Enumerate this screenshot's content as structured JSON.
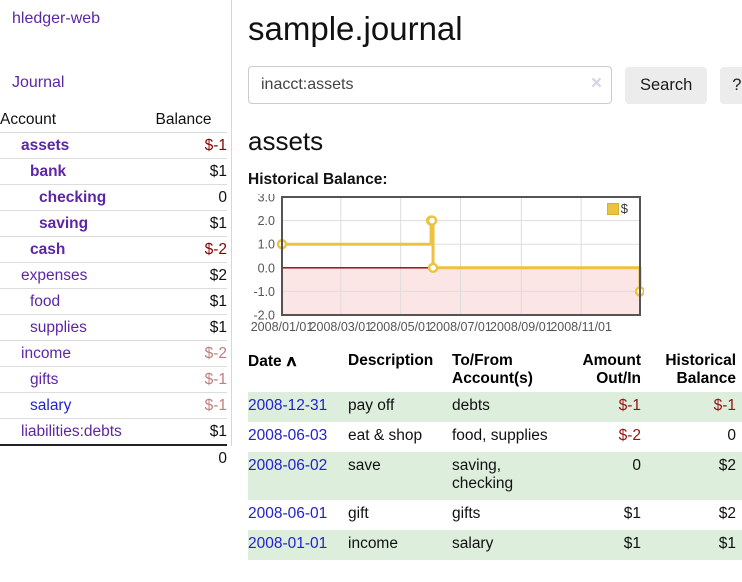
{
  "app": {
    "brand": "hledger-web",
    "nav": {
      "journal": "Journal"
    }
  },
  "sidebar": {
    "header": {
      "account": "Account",
      "balance": "Balance"
    },
    "accounts": [
      {
        "name": "assets",
        "level": 0,
        "bold": true,
        "balance": "$-1",
        "balance_style": "neg-strong"
      },
      {
        "name": "bank",
        "level": 1,
        "bold": true,
        "balance": "$1",
        "balance_style": "plain"
      },
      {
        "name": "checking",
        "level": 2,
        "bold": true,
        "balance": "0",
        "balance_style": "plain"
      },
      {
        "name": "saving",
        "level": 2,
        "bold": true,
        "balance": "$1",
        "balance_style": "plain"
      },
      {
        "name": "cash",
        "level": 1,
        "bold": true,
        "balance": "$-2",
        "balance_style": "neg-strong"
      },
      {
        "name": "expenses",
        "level": 0,
        "bold": false,
        "balance": "$2",
        "balance_style": "plain"
      },
      {
        "name": "food",
        "level": 1,
        "bold": false,
        "balance": "$1",
        "balance_style": "plain"
      },
      {
        "name": "supplies",
        "level": 1,
        "bold": false,
        "balance": "$1",
        "balance_style": "plain"
      },
      {
        "name": "income",
        "level": 0,
        "bold": false,
        "balance": "$-2",
        "balance_style": "neg-weak"
      },
      {
        "name": "gifts",
        "level": 1,
        "bold": false,
        "balance": "$-1",
        "balance_style": "neg-weak"
      },
      {
        "name": "salary",
        "level": 1,
        "bold": false,
        "balance": "$-1",
        "balance_style": "neg-weak",
        "link_color": "blue"
      },
      {
        "name": "liabilities:debts",
        "level": 0,
        "bold": false,
        "balance": "$1",
        "balance_style": "plain"
      }
    ],
    "total": "0"
  },
  "header": {
    "title": "sample.journal"
  },
  "search": {
    "value": "inacct:assets",
    "clear_icon": "×",
    "search_button": "Search",
    "help_button": "?"
  },
  "register": {
    "account_title": "assets",
    "chart_heading": "Historical Balance:",
    "table": {
      "headers": {
        "date": "Date",
        "sort_arrow": "∧",
        "description": "Description",
        "tofrom": "To/From Account(s)",
        "amount": "Amount Out/In",
        "balance": "Historical Balance"
      },
      "rows": [
        {
          "date": "2008-12-31",
          "description": "pay off",
          "accounts": "debts",
          "amount": "$-1",
          "balance": "$-1"
        },
        {
          "date": "2008-06-03",
          "description": "eat & shop",
          "accounts": "food, supplies",
          "amount": "$-2",
          "balance": "0"
        },
        {
          "date": "2008-06-02",
          "description": "save",
          "accounts": "saving, checking",
          "amount": "0",
          "balance": "$2"
        },
        {
          "date": "2008-06-01",
          "description": "gift",
          "accounts": "gifts",
          "amount": "$1",
          "balance": "$2"
        },
        {
          "date": "2008-01-01",
          "description": "income",
          "accounts": "salary",
          "amount": "$1",
          "balance": "$1"
        }
      ]
    }
  },
  "chart_data": {
    "type": "line",
    "title": "Historical Balance:",
    "step": true,
    "series": [
      {
        "name": "$",
        "color": "#edc240",
        "points": [
          [
            "2008-01-01",
            1
          ],
          [
            "2008-06-01",
            2
          ],
          [
            "2008-06-02",
            2
          ],
          [
            "2008-06-03",
            0
          ],
          [
            "2008-12-31",
            -1
          ]
        ]
      }
    ],
    "xlim": [
      "2008-01-01",
      "2008-12-31"
    ],
    "ylim": [
      -2,
      3
    ],
    "yticks": [
      3.0,
      2.0,
      1.0,
      0.0,
      -1.0,
      -2.0
    ],
    "xticks": [
      {
        "date": "2008-01-01",
        "label": "2008/01/01"
      },
      {
        "date": "2008-03-01",
        "label": "2008/03/01"
      },
      {
        "date": "2008-05-01",
        "label": "2008/05/01"
      },
      {
        "date": "2008-07-01",
        "label": "2008/07/01"
      },
      {
        "date": "2008-09-01",
        "label": "2008/09/01"
      },
      {
        "date": "2008-11-01",
        "label": "2008/11/01"
      }
    ],
    "grid": true,
    "legend": {
      "label": "$",
      "position": "top-right"
    },
    "colors": {
      "negative_region": "#fce5e5",
      "zero_line": "#8b0000",
      "grid": "#dddddd",
      "border": "#545454"
    }
  },
  "colors": {
    "link_purple": "#5c26a5",
    "link_blue": "#2222cc",
    "neg_strong": "#8b0000",
    "neg_weak": "#bd7f7f",
    "stripe_green": "#ddeedd",
    "series_yellow": "#edc240"
  }
}
